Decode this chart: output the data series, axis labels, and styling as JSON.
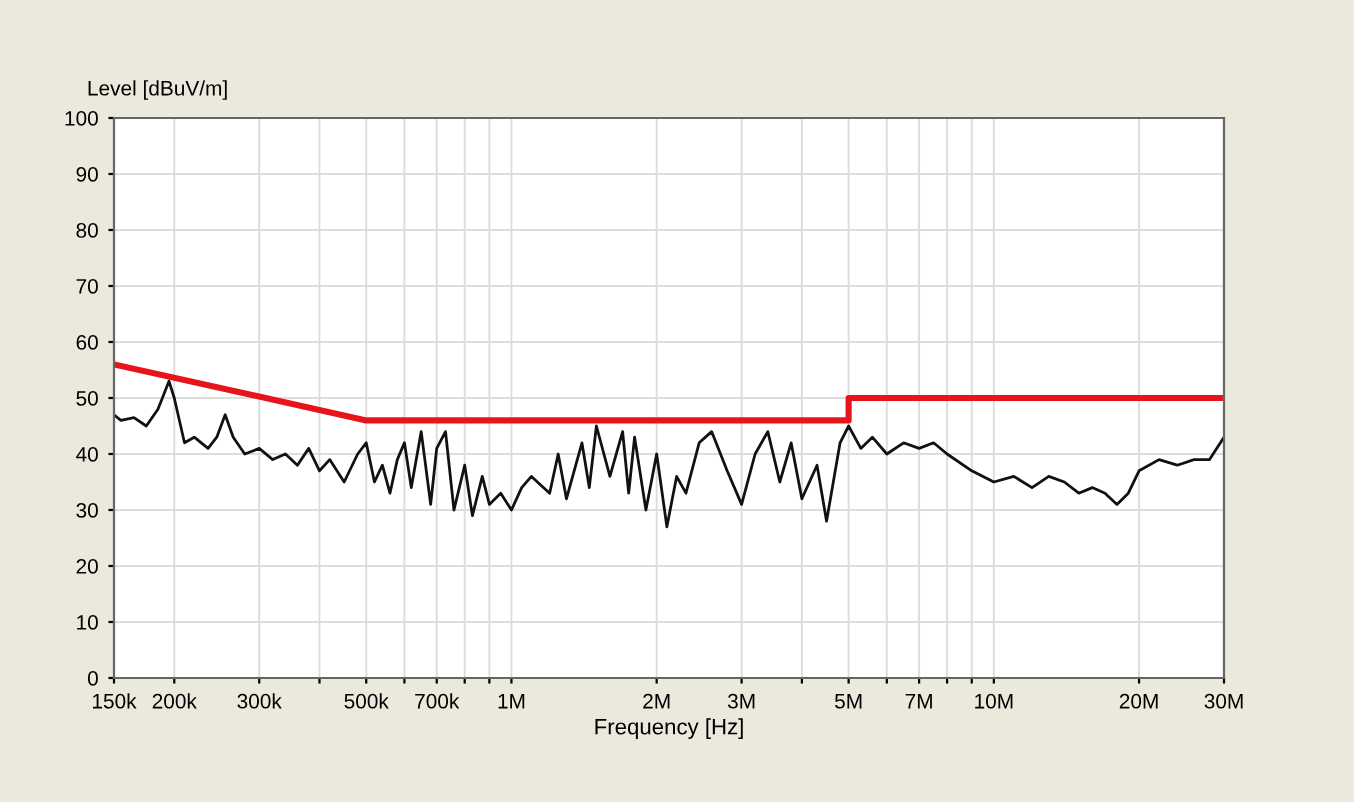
{
  "chart_data": {
    "type": "line",
    "xlabel": "Frequency [Hz]",
    "ylabel": "Level [dBuV/m]",
    "log": "x",
    "grid": true,
    "legend": false,
    "xlim": [
      150000,
      30000000
    ],
    "ylim": [
      0,
      100
    ],
    "xticks": [
      {
        "value": 150000,
        "label": "150k"
      },
      {
        "value": 200000,
        "label": "200k"
      },
      {
        "value": 300000,
        "label": "300k"
      },
      {
        "value": 400000,
        "label": null
      },
      {
        "value": 500000,
        "label": "500k"
      },
      {
        "value": 600000,
        "label": null
      },
      {
        "value": 700000,
        "label": "700k"
      },
      {
        "value": 800000,
        "label": null
      },
      {
        "value": 900000,
        "label": null
      },
      {
        "value": 1000000,
        "label": "1M"
      },
      {
        "value": 2000000,
        "label": "2M"
      },
      {
        "value": 3000000,
        "label": "3M"
      },
      {
        "value": 4000000,
        "label": null
      },
      {
        "value": 5000000,
        "label": "5M"
      },
      {
        "value": 6000000,
        "label": null
      },
      {
        "value": 7000000,
        "label": "7M"
      },
      {
        "value": 8000000,
        "label": null
      },
      {
        "value": 9000000,
        "label": null
      },
      {
        "value": 10000000,
        "label": "10M"
      },
      {
        "value": 20000000,
        "label": "20M"
      },
      {
        "value": 30000000,
        "label": "30M"
      }
    ],
    "yticks": [
      0,
      10,
      20,
      30,
      40,
      50,
      60,
      70,
      80,
      90,
      100
    ],
    "series": [
      {
        "color": "#111111",
        "x": [
          150000,
          155000,
          165000,
          175000,
          185000,
          195000,
          200000,
          210000,
          220000,
          235000,
          245000,
          255000,
          265000,
          280000,
          300000,
          320000,
          340000,
          360000,
          380000,
          400000,
          420000,
          450000,
          480000,
          500000,
          520000,
          540000,
          560000,
          580000,
          600000,
          620000,
          650000,
          680000,
          700000,
          730000,
          760000,
          800000,
          830000,
          870000,
          900000,
          950000,
          1000000,
          1050000,
          1100000,
          1200000,
          1250000,
          1300000,
          1400000,
          1450000,
          1500000,
          1600000,
          1700000,
          1750000,
          1800000,
          1900000,
          2000000,
          2100000,
          2200000,
          2300000,
          2450000,
          2600000,
          2800000,
          3000000,
          3200000,
          3400000,
          3600000,
          3800000,
          4000000,
          4300000,
          4500000,
          4800000,
          5000000,
          5300000,
          5600000,
          6000000,
          6500000,
          7000000,
          7500000,
          8000000,
          9000000,
          10000000,
          11000000,
          12000000,
          13000000,
          14000000,
          15000000,
          16000000,
          17000000,
          18000000,
          19000000,
          20000000,
          22000000,
          24000000,
          26000000,
          28000000,
          30000000
        ],
        "values": [
          47,
          46,
          46.5,
          45,
          48,
          53,
          50,
          42,
          43,
          41,
          43,
          47,
          43,
          40,
          41,
          39,
          40,
          38,
          41,
          37,
          39,
          35,
          40,
          42,
          35,
          38,
          33,
          39,
          42,
          34,
          44,
          31,
          41,
          44,
          30,
          38,
          29,
          36,
          31,
          33,
          30,
          34,
          36,
          33,
          40,
          32,
          42,
          34,
          45,
          36,
          44,
          33,
          43,
          30,
          40,
          27,
          36,
          33,
          42,
          44,
          37,
          31,
          40,
          44,
          35,
          42,
          32,
          38,
          28,
          42,
          45,
          41,
          43,
          40,
          42,
          41,
          42,
          40,
          37,
          35,
          36,
          34,
          36,
          35,
          33,
          34,
          33,
          31,
          33,
          37,
          39,
          38,
          39,
          39,
          43
        ]
      },
      {
        "color": "#e8141c",
        "x": [
          150000,
          500000,
          5000000,
          5000000,
          30000000
        ],
        "values": [
          56,
          46,
          46,
          50,
          50
        ]
      }
    ]
  }
}
